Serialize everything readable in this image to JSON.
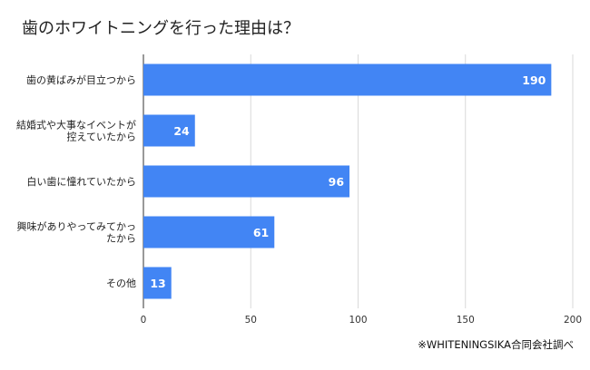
{
  "chart_data": {
    "type": "bar",
    "orientation": "horizontal",
    "title": "歯のホワイトニングを行った理由は？",
    "categories": [
      [
        "歯の黄ばみが目立つから"
      ],
      [
        "結婚式や大事なイベントが",
        "控えていたから"
      ],
      [
        "白い歯に憧れていたから"
      ],
      [
        "興味がありやってみてかっ",
        "たから"
      ],
      [
        "その他"
      ]
    ],
    "values": [
      190,
      24,
      96,
      61,
      13
    ],
    "data_labels": [
      "190",
      "24",
      "96",
      "61",
      "13"
    ],
    "xlim": [
      0,
      200
    ],
    "xticks": [
      0,
      50,
      100,
      150,
      200
    ],
    "grid": true,
    "legend": "none",
    "bar_color": "#4285f4",
    "source_note": "※WHITENINGSIKA合同会社調べ"
  }
}
